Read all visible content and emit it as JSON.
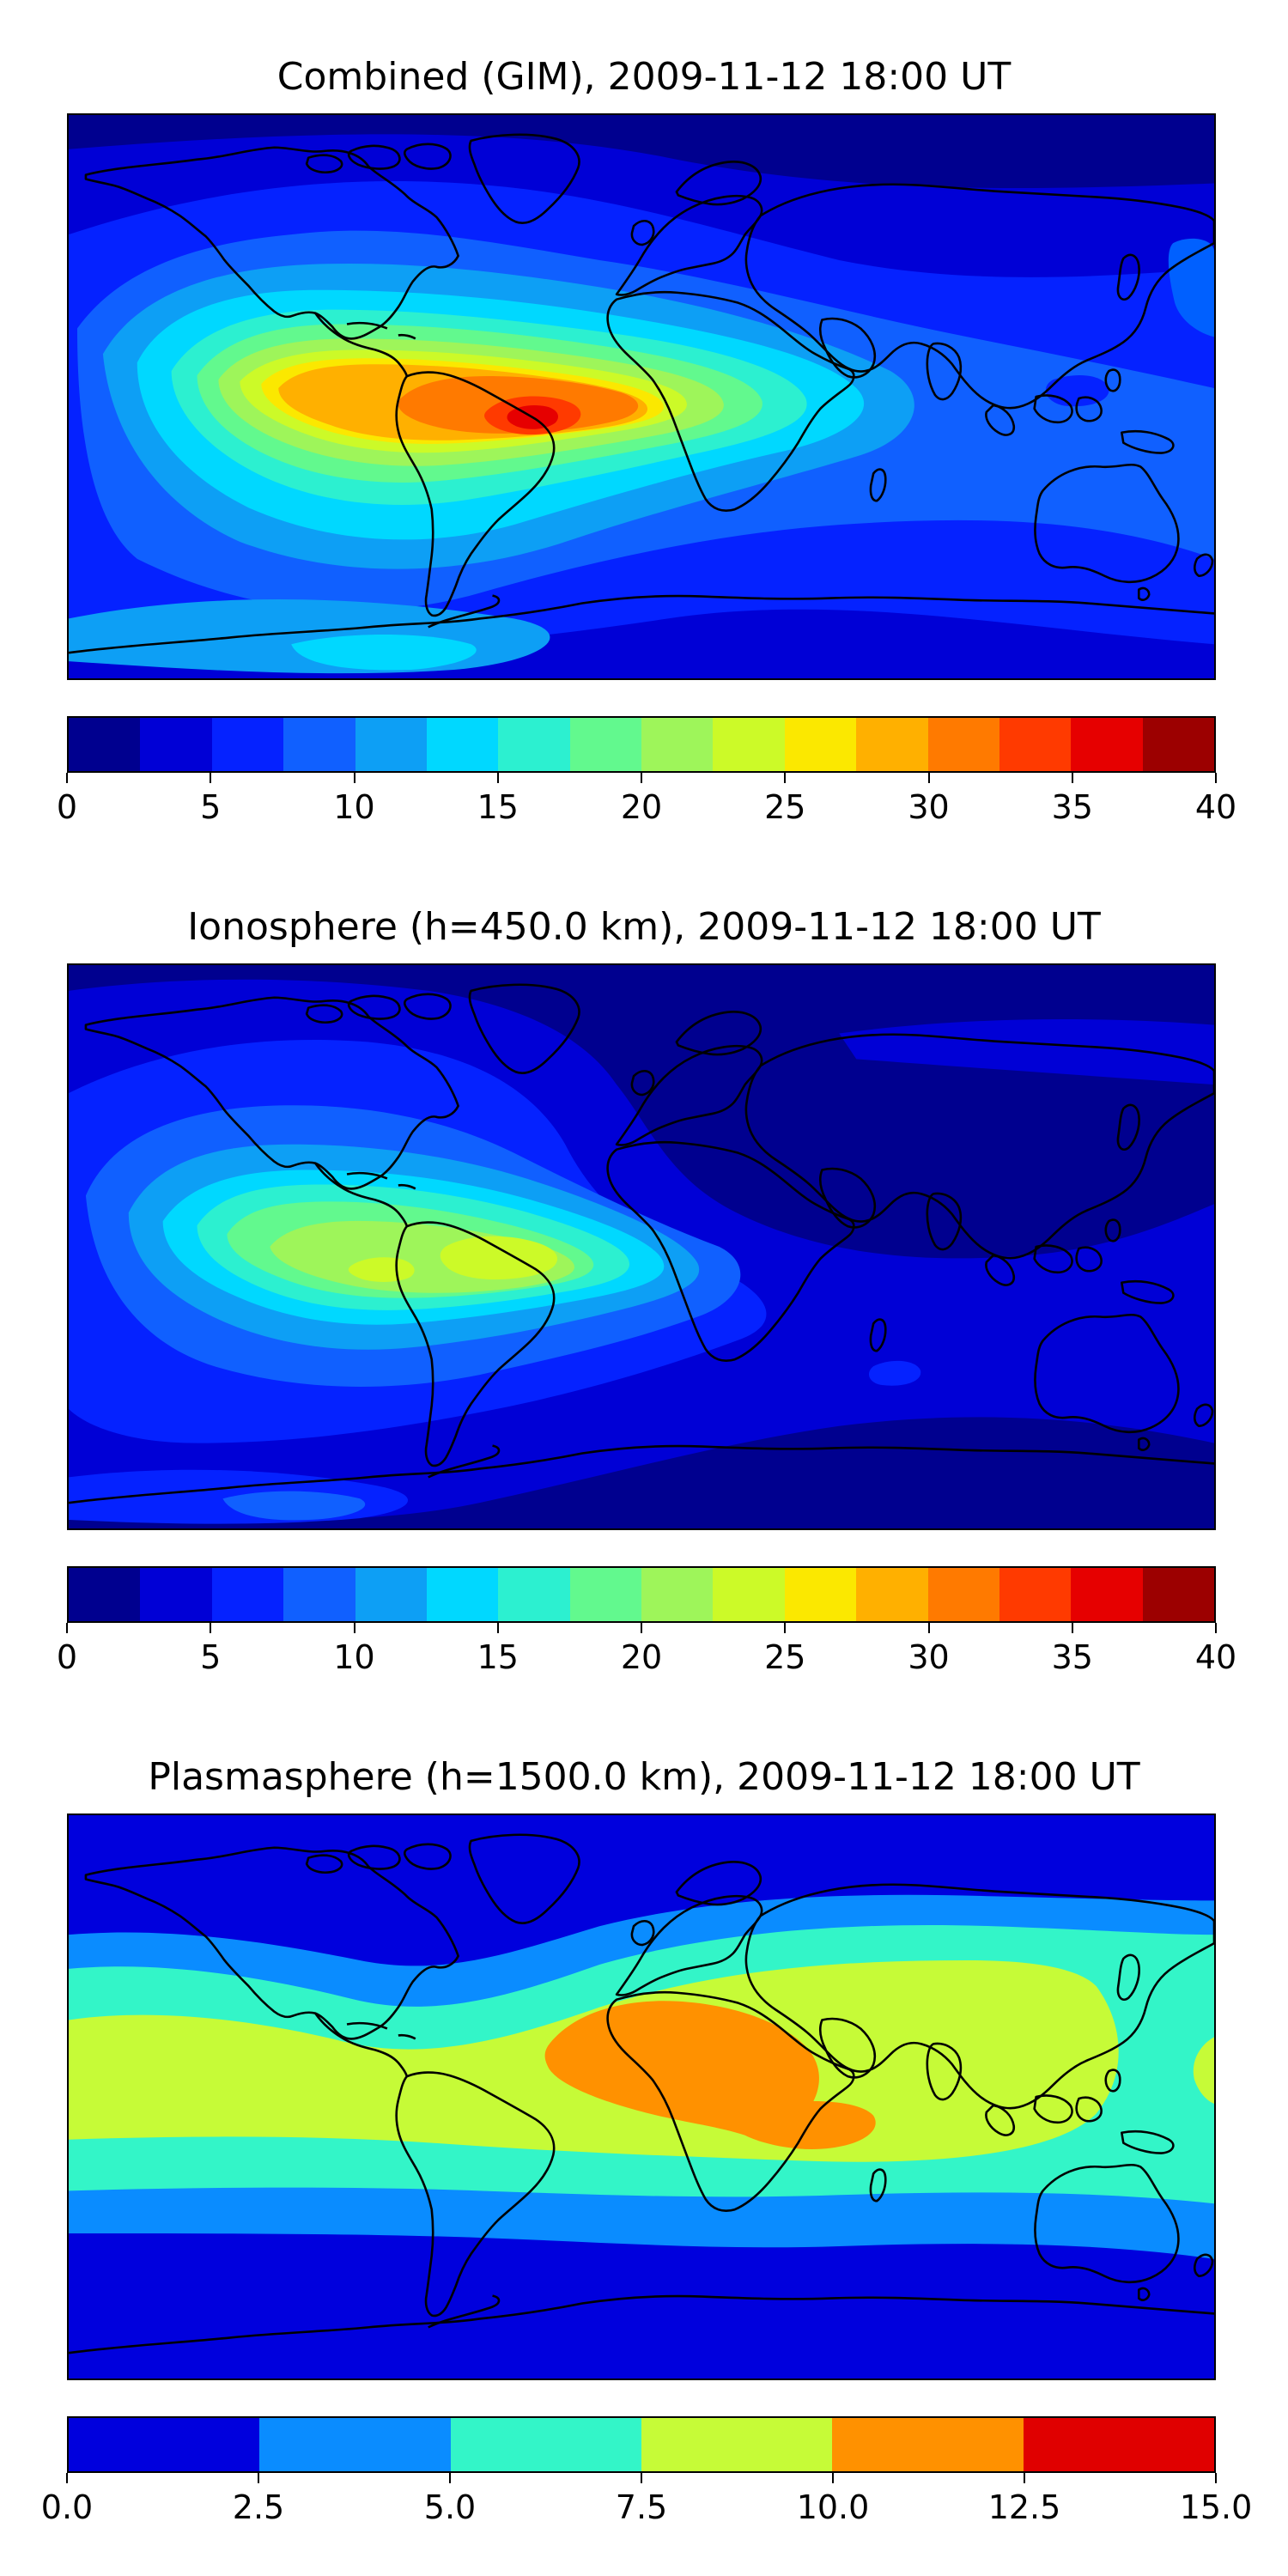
{
  "panels": [
    {
      "id": "combined",
      "title": "Combined (GIM), 2009-11-12 18:00 UT",
      "colorbar": {
        "levels": [
          0,
          2.5,
          5,
          7.5,
          10,
          12.5,
          15,
          17.5,
          20,
          22.5,
          25,
          27.5,
          30,
          32.5,
          35,
          37.5,
          40
        ],
        "colors": [
          "#00008f",
          "#0000d6",
          "#0522ff",
          "#1060ff",
          "#0d9ff5",
          "#00d8ff",
          "#2cf0d0",
          "#62f98e",
          "#9ef55a",
          "#ccfa28",
          "#fbe800",
          "#ffb000",
          "#ff7a00",
          "#ff3a00",
          "#e60000",
          "#9c0000"
        ],
        "tick_labels": [
          "0",
          "5",
          "10",
          "15",
          "20",
          "25",
          "30",
          "35",
          "40"
        ],
        "tick_values": [
          0,
          5,
          10,
          15,
          20,
          25,
          30,
          35,
          40
        ],
        "vmin": 0,
        "vmax": 40
      }
    },
    {
      "id": "ionosphere",
      "title": "Ionosphere  (h=450.0 km), 2009-11-12 18:00 UT",
      "colorbar": {
        "levels": [
          0,
          2.5,
          5,
          7.5,
          10,
          12.5,
          15,
          17.5,
          20,
          22.5,
          25,
          27.5,
          30,
          32.5,
          35,
          37.5,
          40
        ],
        "colors": [
          "#00008f",
          "#0000d6",
          "#0522ff",
          "#1060ff",
          "#0d9ff5",
          "#00d8ff",
          "#2cf0d0",
          "#62f98e",
          "#9ef55a",
          "#ccfa28",
          "#fbe800",
          "#ffb000",
          "#ff7a00",
          "#ff3a00",
          "#e60000",
          "#9c0000"
        ],
        "tick_labels": [
          "0",
          "5",
          "10",
          "15",
          "20",
          "25",
          "30",
          "35",
          "40"
        ],
        "tick_values": [
          0,
          5,
          10,
          15,
          20,
          25,
          30,
          35,
          40
        ],
        "vmin": 0,
        "vmax": 40
      }
    },
    {
      "id": "plasmasphere",
      "title": "Plasmasphere (h=1500.0 km), 2009-11-12 18:00 UT",
      "colorbar": {
        "levels": [
          0,
          2.5,
          5,
          7.5,
          10,
          12.5,
          15
        ],
        "colors": [
          "#0000dd",
          "#0a8cff",
          "#33f5c8",
          "#c6fb37",
          "#ff9100",
          "#e00000"
        ],
        "tick_labels": [
          "0.0",
          "2.5",
          "5.0",
          "7.5",
          "10.0",
          "12.5",
          "15.0"
        ],
        "tick_values": [
          0,
          2.5,
          5,
          7.5,
          10,
          12.5,
          15
        ],
        "vmin": 0,
        "vmax": 15
      }
    }
  ]
}
